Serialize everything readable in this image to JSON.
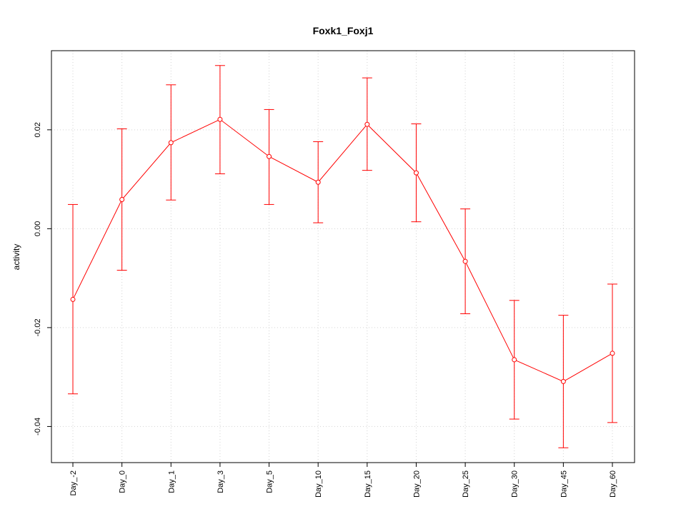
{
  "chart_data": {
    "type": "line",
    "title": "Foxk1_Foxj1",
    "xlabel": "",
    "ylabel": "activity",
    "categories": [
      "Day_-2",
      "Day_0",
      "Day_1",
      "Day_3",
      "Day_5",
      "Day_10",
      "Day_15",
      "Day_20",
      "Day_25",
      "Day_30",
      "Day_45",
      "Day_60"
    ],
    "series": [
      {
        "values": [
          -0.0143,
          0.0059,
          0.0174,
          0.0221,
          0.0146,
          0.0094,
          0.0211,
          0.0113,
          -0.0066,
          -0.0265,
          -0.0309,
          -0.0252
        ],
        "lower": [
          -0.0334,
          -0.0084,
          0.0058,
          0.0111,
          0.0049,
          0.0012,
          0.0118,
          0.0014,
          -0.0172,
          -0.0385,
          -0.0443,
          -0.0392
        ],
        "upper": [
          0.0049,
          0.0202,
          0.0291,
          0.033,
          0.0241,
          0.0176,
          0.0305,
          0.0212,
          0.004,
          -0.0145,
          -0.0175,
          -0.0112
        ]
      }
    ],
    "yticks": [
      -0.04,
      -0.02,
      0.0,
      0.02
    ],
    "ytick_labels": [
      "-0.04",
      "-0.02",
      "0.00",
      "0.02"
    ],
    "ylim": [
      -0.0473,
      0.036
    ],
    "grid": true,
    "color": "#ff0000",
    "grid_color": "#d3d3d3"
  }
}
